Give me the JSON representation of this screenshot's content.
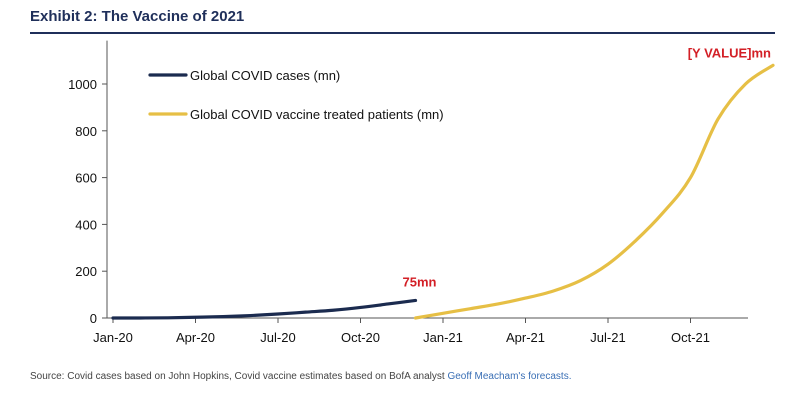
{
  "title": "Exhibit 2: The Vaccine of 2021",
  "source": {
    "text": "Source: Covid cases based on John Hopkins, Covid vaccine estimates based on BofA analyst ",
    "link_text": "Geoff Meacham's forecasts."
  },
  "colors": {
    "cases": "#1b2b4f",
    "vaccine": "#e6bf45",
    "annotation": "#d31f26"
  },
  "chart_data": {
    "type": "line",
    "title": "Exhibit 2: The Vaccine of 2021",
    "xlabel": "",
    "ylabel": "",
    "ylim": [
      0,
      1100
    ],
    "y_ticks": [
      0,
      200,
      400,
      600,
      800,
      1000
    ],
    "x_ticks": [
      "Jan-20",
      "Apr-20",
      "Jul-20",
      "Oct-20",
      "Jan-21",
      "Apr-21",
      "Jul-21",
      "Oct-21"
    ],
    "legend_position": "top-left",
    "grid": false,
    "series": [
      {
        "name": "Global COVID cases (mn)",
        "color": "#1b2b4f",
        "points": [
          [
            "Jan-20",
            0
          ],
          [
            "Feb-20",
            0.1
          ],
          [
            "Mar-20",
            0.8
          ],
          [
            "Apr-20",
            3.2
          ],
          [
            "May-20",
            6
          ],
          [
            "Jun-20",
            10.5
          ],
          [
            "Jul-20",
            17
          ],
          [
            "Aug-20",
            25
          ],
          [
            "Sep-20",
            33
          ],
          [
            "Oct-20",
            45
          ],
          [
            "Nov-20",
            60
          ],
          [
            "Dec-20",
            75
          ]
        ]
      },
      {
        "name": "Global COVID vaccine treated patients (mn)",
        "color": "#e6bf45",
        "points": [
          [
            "Dec-20",
            0
          ],
          [
            "Jan-21",
            20
          ],
          [
            "Feb-21",
            40
          ],
          [
            "Mar-21",
            60
          ],
          [
            "Apr-21",
            85
          ],
          [
            "May-21",
            115
          ],
          [
            "Jun-21",
            160
          ],
          [
            "Jul-21",
            230
          ],
          [
            "Aug-21",
            330
          ],
          [
            "Sep-21",
            450
          ],
          [
            "Oct-21",
            600
          ],
          [
            "Nov-21",
            850
          ],
          [
            "Dec-21",
            1000
          ],
          [
            "Jan-22",
            1080
          ]
        ]
      }
    ],
    "annotations": [
      {
        "text": "75mn",
        "series": 0
      },
      {
        "text": "[Y VALUE]mn",
        "series": 1
      }
    ]
  }
}
